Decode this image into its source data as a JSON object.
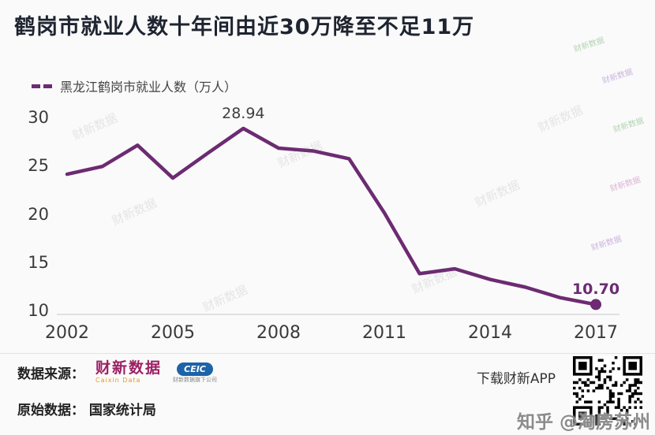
{
  "title": "鹤岗市就业人数十年间由近30万降至不足11万",
  "legend_label": "黑龙江鹤岗市就业人数（万人）",
  "chart_data": {
    "type": "line",
    "title": "鹤岗市就业人数十年间由近30万降至不足11万",
    "series_name": "黑龙江鹤岗市就业人数（万人）",
    "x": [
      2002,
      2003,
      2004,
      2005,
      2006,
      2007,
      2008,
      2009,
      2010,
      2011,
      2012,
      2013,
      2014,
      2015,
      2016,
      2017
    ],
    "values": [
      24.2,
      25.0,
      27.2,
      23.8,
      26.4,
      28.94,
      26.9,
      26.6,
      25.8,
      20.2,
      13.9,
      14.4,
      13.3,
      12.5,
      11.4,
      10.7
    ],
    "ylim": [
      10,
      30
    ],
    "yticks": [
      30,
      25,
      20,
      15,
      10
    ],
    "xticks": [
      2002,
      2005,
      2008,
      2011,
      2014,
      2017
    ],
    "grid": false,
    "legend_position": "top-left",
    "line_color": "#6c2b72",
    "annotations": [
      {
        "x": 2007,
        "label": "28.94",
        "color": "#3f3f3f"
      },
      {
        "x": 2017,
        "label": "10.70",
        "color": "#6c2b72"
      }
    ]
  },
  "footer": {
    "source_label": "数据来源：",
    "caixin_logo": "财新数据",
    "caixin_sub": "Caixin Data",
    "ceic_logo": "CEIC",
    "ceic_sub": "财新数据旗下公司",
    "app_text": "下载财新APP",
    "origin_label": "原始数据：",
    "origin_value": "国家统计局"
  },
  "watermark": {
    "text": "财新数据",
    "credit": "知乎 @淘房苏州"
  }
}
